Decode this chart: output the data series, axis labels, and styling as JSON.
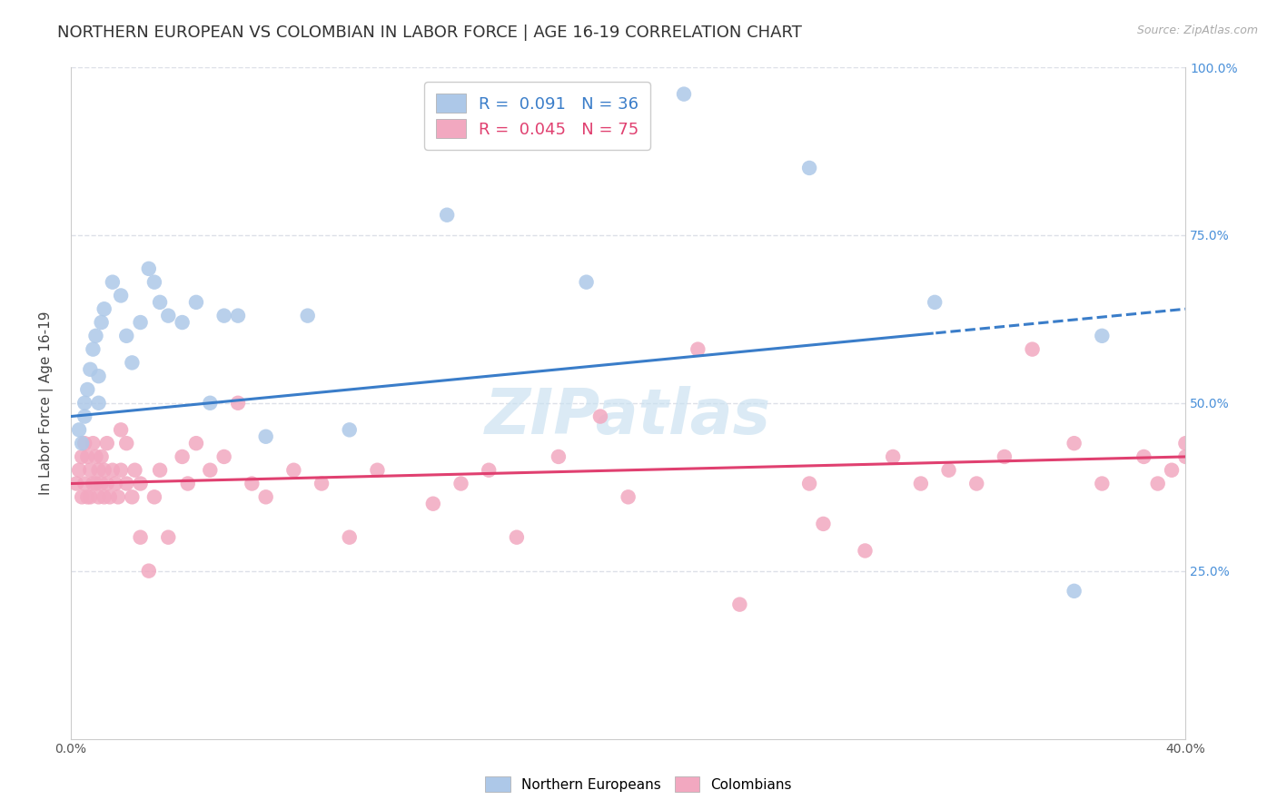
{
  "title": "NORTHERN EUROPEAN VS COLOMBIAN IN LABOR FORCE | AGE 16-19 CORRELATION CHART",
  "source": "Source: ZipAtlas.com",
  "ylabel": "In Labor Force | Age 16-19",
  "xlim": [
    0.0,
    40.0
  ],
  "ylim": [
    0.0,
    100.0
  ],
  "blue_color": "#adc8e8",
  "pink_color": "#f2a8c0",
  "blue_line_color": "#3a7dc9",
  "pink_line_color": "#e04070",
  "legend_blue_label": "R =  0.091   N = 36",
  "legend_pink_label": "R =  0.045   N = 75",
  "blue_scatter_x": [
    0.3,
    0.4,
    0.5,
    0.5,
    0.6,
    0.7,
    0.8,
    0.9,
    1.0,
    1.0,
    1.1,
    1.2,
    1.5,
    1.8,
    2.0,
    2.2,
    2.5,
    2.8,
    3.0,
    3.2,
    3.5,
    4.0,
    4.5,
    5.0,
    5.5,
    6.0,
    7.0,
    8.5,
    10.0,
    13.5,
    18.5,
    22.0,
    26.5,
    31.0,
    36.0,
    37.0
  ],
  "blue_scatter_y": [
    46.0,
    44.0,
    50.0,
    48.0,
    52.0,
    55.0,
    58.0,
    60.0,
    50.0,
    54.0,
    62.0,
    64.0,
    68.0,
    66.0,
    60.0,
    56.0,
    62.0,
    70.0,
    68.0,
    65.0,
    63.0,
    62.0,
    65.0,
    50.0,
    63.0,
    63.0,
    45.0,
    63.0,
    46.0,
    78.0,
    68.0,
    96.0,
    85.0,
    65.0,
    22.0,
    60.0
  ],
  "pink_scatter_x": [
    0.2,
    0.3,
    0.4,
    0.4,
    0.5,
    0.5,
    0.6,
    0.6,
    0.7,
    0.7,
    0.8,
    0.8,
    0.9,
    0.9,
    1.0,
    1.0,
    1.1,
    1.1,
    1.2,
    1.2,
    1.3,
    1.3,
    1.4,
    1.5,
    1.6,
    1.7,
    1.8,
    1.8,
    2.0,
    2.0,
    2.2,
    2.3,
    2.5,
    2.5,
    2.8,
    3.0,
    3.2,
    3.5,
    4.0,
    4.2,
    4.5,
    5.0,
    5.5,
    6.0,
    6.5,
    7.0,
    8.0,
    9.0,
    10.0,
    11.0,
    13.0,
    14.0,
    15.0,
    16.0,
    17.5,
    19.0,
    20.0,
    22.5,
    24.0,
    26.5,
    27.0,
    28.5,
    29.5,
    30.5,
    31.5,
    32.5,
    33.5,
    34.5,
    36.0,
    37.0,
    38.5,
    39.0,
    39.5,
    40.0,
    40.0
  ],
  "pink_scatter_y": [
    38.0,
    40.0,
    36.0,
    42.0,
    38.0,
    44.0,
    36.0,
    42.0,
    40.0,
    36.0,
    38.0,
    44.0,
    38.0,
    42.0,
    40.0,
    36.0,
    38.0,
    42.0,
    36.0,
    40.0,
    38.0,
    44.0,
    36.0,
    40.0,
    38.0,
    36.0,
    40.0,
    46.0,
    38.0,
    44.0,
    36.0,
    40.0,
    38.0,
    30.0,
    25.0,
    36.0,
    40.0,
    30.0,
    42.0,
    38.0,
    44.0,
    40.0,
    42.0,
    50.0,
    38.0,
    36.0,
    40.0,
    38.0,
    30.0,
    40.0,
    35.0,
    38.0,
    40.0,
    30.0,
    42.0,
    48.0,
    36.0,
    58.0,
    20.0,
    38.0,
    32.0,
    28.0,
    42.0,
    38.0,
    40.0,
    38.0,
    42.0,
    58.0,
    44.0,
    38.0,
    42.0,
    38.0,
    40.0,
    42.0,
    44.0
  ],
  "blue_line_x0": 0.0,
  "blue_line_y0": 48.0,
  "blue_line_x1": 40.0,
  "blue_line_y1": 64.0,
  "blue_solid_end": 31.0,
  "pink_line_x0": 0.0,
  "pink_line_y0": 38.0,
  "pink_line_x1": 40.0,
  "pink_line_y1": 42.0,
  "watermark": "ZIPatlas",
  "background_color": "#ffffff",
  "grid_color": "#dde0e8",
  "title_fontsize": 13,
  "axis_label_fontsize": 11,
  "tick_fontsize": 10,
  "right_tick_color": "#4a90d9"
}
